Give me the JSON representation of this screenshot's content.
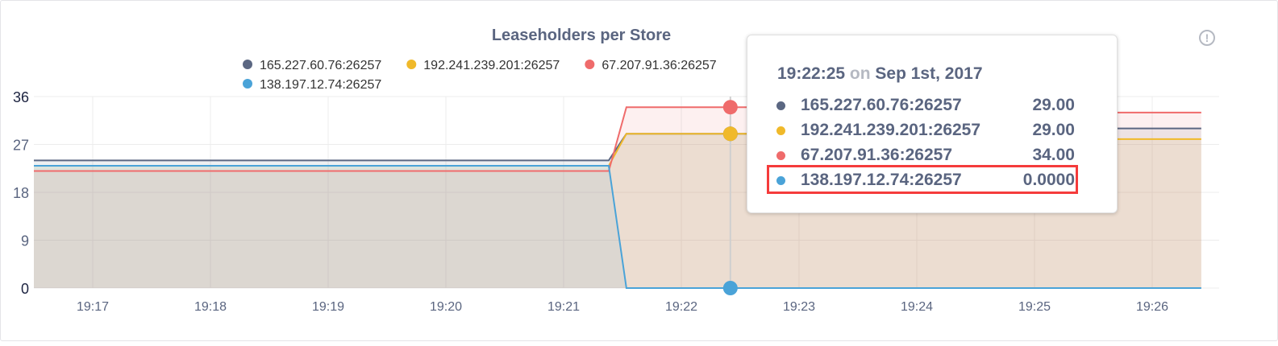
{
  "chart_data": {
    "type": "area",
    "title": "Leaseholders per Store",
    "ylim": [
      0,
      36
    ],
    "yticks": [
      0,
      9,
      18,
      27,
      36
    ],
    "xlim": [
      "19:16:30",
      "19:26:25"
    ],
    "xticks": [
      "19:17",
      "19:18",
      "19:19",
      "19:20",
      "19:21",
      "19:22",
      "19:23",
      "19:24",
      "19:25",
      "19:26"
    ],
    "grid": true,
    "legend": "top",
    "series": [
      {
        "name": "165.227.60.76:26257",
        "color": "#5b6782",
        "points": [
          [
            "19:16:30",
            24
          ],
          [
            "19:21:23",
            24
          ],
          [
            "19:21:32",
            29
          ],
          [
            "19:25:00",
            29
          ],
          [
            "19:25:10",
            30
          ],
          [
            "19:26:25",
            30
          ]
        ]
      },
      {
        "name": "192.241.239.201:26257",
        "color": "#f0b92a",
        "points": [
          [
            "19:16:30",
            23
          ],
          [
            "19:21:23",
            23
          ],
          [
            "19:21:32",
            29
          ],
          [
            "19:25:00",
            29
          ],
          [
            "19:25:10",
            28
          ],
          [
            "19:26:25",
            28
          ]
        ]
      },
      {
        "name": "67.207.91.36:26257",
        "color": "#ef6b6b",
        "points": [
          [
            "19:16:30",
            22
          ],
          [
            "19:21:23",
            22
          ],
          [
            "19:21:32",
            34
          ],
          [
            "19:25:00",
            34
          ],
          [
            "19:25:10",
            33
          ],
          [
            "19:26:25",
            33
          ]
        ]
      },
      {
        "name": "138.197.12.74:26257",
        "color": "#4aa3d8",
        "points": [
          [
            "19:16:30",
            23
          ],
          [
            "19:21:23",
            23
          ],
          [
            "19:21:32",
            0
          ],
          [
            "19:26:25",
            0
          ]
        ]
      }
    ],
    "hover_time": "19:22:25"
  },
  "info_icon": "info-circle-icon",
  "info_glyph": "!",
  "tooltip": {
    "time": "19:22:25",
    "on": "on",
    "date": "Sep 1st, 2017",
    "rows": [
      {
        "name": "165.227.60.76:26257",
        "value": "29.00",
        "color": "#5b6782"
      },
      {
        "name": "192.241.239.201:26257",
        "value": "29.00",
        "color": "#f0b92a"
      },
      {
        "name": "67.207.91.36:26257",
        "value": "34.00",
        "color": "#ef6b6b"
      },
      {
        "name": "138.197.12.74:26257",
        "value": "0.0000",
        "color": "#4aa3d8"
      }
    ],
    "highlight_color": "#f53b3b"
  }
}
